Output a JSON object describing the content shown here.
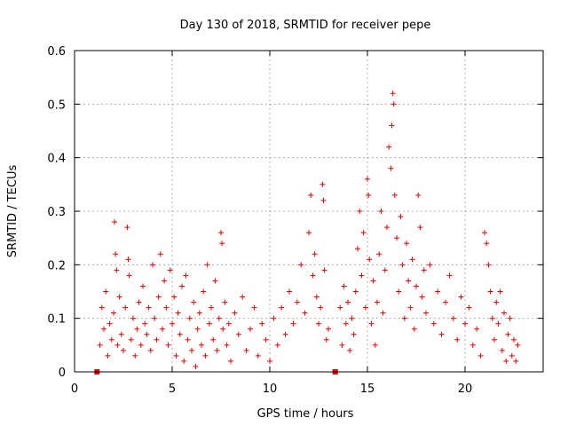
{
  "chart_data": {
    "type": "scatter",
    "title": "Day 130 of 2018, SRMTID for receiver pepe",
    "xlabel": "GPS time / hours",
    "ylabel": "SRMTID / TECUs",
    "xlim": [
      0,
      24
    ],
    "ylim": [
      0,
      0.6
    ],
    "xticks": [
      0,
      5,
      10,
      15,
      20
    ],
    "yticks": [
      0,
      0.1,
      0.2,
      0.3,
      0.4,
      0.5,
      0.6
    ],
    "grid": true,
    "marker": "+",
    "color": "#e00000",
    "outlier_squares": [
      {
        "x": 1.15,
        "y": 0.0
      },
      {
        "x": 13.35,
        "y": 0.0
      }
    ],
    "series": [
      {
        "name": "SRMTID",
        "points": [
          [
            1.3,
            0.05
          ],
          [
            1.4,
            0.12
          ],
          [
            1.5,
            0.08
          ],
          [
            1.6,
            0.15
          ],
          [
            1.7,
            0.03
          ],
          [
            1.8,
            0.09
          ],
          [
            1.9,
            0.06
          ],
          [
            2.0,
            0.11
          ],
          [
            2.05,
            0.28
          ],
          [
            2.1,
            0.22
          ],
          [
            2.15,
            0.19
          ],
          [
            2.2,
            0.05
          ],
          [
            2.3,
            0.14
          ],
          [
            2.4,
            0.07
          ],
          [
            2.5,
            0.04
          ],
          [
            2.6,
            0.12
          ],
          [
            2.7,
            0.27
          ],
          [
            2.75,
            0.21
          ],
          [
            2.8,
            0.18
          ],
          [
            2.9,
            0.06
          ],
          [
            3.0,
            0.1
          ],
          [
            3.1,
            0.03
          ],
          [
            3.2,
            0.08
          ],
          [
            3.3,
            0.13
          ],
          [
            3.4,
            0.05
          ],
          [
            3.5,
            0.16
          ],
          [
            3.6,
            0.09
          ],
          [
            3.7,
            0.07
          ],
          [
            3.8,
            0.12
          ],
          [
            3.9,
            0.04
          ],
          [
            4.0,
            0.2
          ],
          [
            4.1,
            0.1
          ],
          [
            4.2,
            0.06
          ],
          [
            4.3,
            0.14
          ],
          [
            4.4,
            0.22
          ],
          [
            4.5,
            0.08
          ],
          [
            4.6,
            0.17
          ],
          [
            4.7,
            0.12
          ],
          [
            4.8,
            0.05
          ],
          [
            4.9,
            0.19
          ],
          [
            5.0,
            0.09
          ],
          [
            5.1,
            0.14
          ],
          [
            5.2,
            0.03
          ],
          [
            5.3,
            0.11
          ],
          [
            5.4,
            0.07
          ],
          [
            5.5,
            0.16
          ],
          [
            5.6,
            0.02
          ],
          [
            5.7,
            0.18
          ],
          [
            5.8,
            0.06
          ],
          [
            5.9,
            0.1
          ],
          [
            6.0,
            0.04
          ],
          [
            6.1,
            0.13
          ],
          [
            6.2,
            0.01
          ],
          [
            6.3,
            0.08
          ],
          [
            6.4,
            0.11
          ],
          [
            6.5,
            0.05
          ],
          [
            6.6,
            0.15
          ],
          [
            6.7,
            0.03
          ],
          [
            6.8,
            0.2
          ],
          [
            6.9,
            0.09
          ],
          [
            7.0,
            0.12
          ],
          [
            7.1,
            0.06
          ],
          [
            7.2,
            0.17
          ],
          [
            7.3,
            0.04
          ],
          [
            7.4,
            0.1
          ],
          [
            7.5,
            0.26
          ],
          [
            7.55,
            0.24
          ],
          [
            7.6,
            0.08
          ],
          [
            7.7,
            0.13
          ],
          [
            7.8,
            0.05
          ],
          [
            7.9,
            0.09
          ],
          [
            8.0,
            0.02
          ],
          [
            8.2,
            0.11
          ],
          [
            8.4,
            0.07
          ],
          [
            8.6,
            0.14
          ],
          [
            8.8,
            0.04
          ],
          [
            9.0,
            0.08
          ],
          [
            9.2,
            0.12
          ],
          [
            9.4,
            0.03
          ],
          [
            9.6,
            0.09
          ],
          [
            9.8,
            0.06
          ],
          [
            10.0,
            0.02
          ],
          [
            10.2,
            0.1
          ],
          [
            10.4,
            0.05
          ],
          [
            10.6,
            0.12
          ],
          [
            10.8,
            0.07
          ],
          [
            11.0,
            0.15
          ],
          [
            11.2,
            0.09
          ],
          [
            11.4,
            0.13
          ],
          [
            11.6,
            0.2
          ],
          [
            11.8,
            0.11
          ],
          [
            12.0,
            0.26
          ],
          [
            12.1,
            0.33
          ],
          [
            12.2,
            0.18
          ],
          [
            12.3,
            0.22
          ],
          [
            12.4,
            0.14
          ],
          [
            12.5,
            0.09
          ],
          [
            12.6,
            0.12
          ],
          [
            12.7,
            0.35
          ],
          [
            12.75,
            0.32
          ],
          [
            12.8,
            0.19
          ],
          [
            12.9,
            0.06
          ],
          [
            13.0,
            0.08
          ],
          [
            13.6,
            0.12
          ],
          [
            13.7,
            0.05
          ],
          [
            13.8,
            0.16
          ],
          [
            13.9,
            0.09
          ],
          [
            14.0,
            0.13
          ],
          [
            14.1,
            0.04
          ],
          [
            14.2,
            0.1
          ],
          [
            14.3,
            0.07
          ],
          [
            14.4,
            0.15
          ],
          [
            14.5,
            0.23
          ],
          [
            14.6,
            0.3
          ],
          [
            14.7,
            0.18
          ],
          [
            14.8,
            0.26
          ],
          [
            14.9,
            0.12
          ],
          [
            15.0,
            0.36
          ],
          [
            15.05,
            0.33
          ],
          [
            15.1,
            0.21
          ],
          [
            15.2,
            0.09
          ],
          [
            15.3,
            0.17
          ],
          [
            15.4,
            0.05
          ],
          [
            15.5,
            0.13
          ],
          [
            15.6,
            0.22
          ],
          [
            15.7,
            0.3
          ],
          [
            15.8,
            0.11
          ],
          [
            15.9,
            0.19
          ],
          [
            16.0,
            0.27
          ],
          [
            16.1,
            0.42
          ],
          [
            16.2,
            0.38
          ],
          [
            16.25,
            0.46
          ],
          [
            16.3,
            0.52
          ],
          [
            16.35,
            0.5
          ],
          [
            16.4,
            0.33
          ],
          [
            16.5,
            0.25
          ],
          [
            16.6,
            0.15
          ],
          [
            16.7,
            0.29
          ],
          [
            16.8,
            0.2
          ],
          [
            16.9,
            0.1
          ],
          [
            17.0,
            0.24
          ],
          [
            17.1,
            0.17
          ],
          [
            17.2,
            0.12
          ],
          [
            17.3,
            0.21
          ],
          [
            17.4,
            0.08
          ],
          [
            17.5,
            0.16
          ],
          [
            17.6,
            0.33
          ],
          [
            17.7,
            0.27
          ],
          [
            17.8,
            0.14
          ],
          [
            17.9,
            0.19
          ],
          [
            18.0,
            0.11
          ],
          [
            18.2,
            0.2
          ],
          [
            18.4,
            0.09
          ],
          [
            18.6,
            0.15
          ],
          [
            18.8,
            0.07
          ],
          [
            19.0,
            0.13
          ],
          [
            19.2,
            0.18
          ],
          [
            19.4,
            0.1
          ],
          [
            19.6,
            0.06
          ],
          [
            19.8,
            0.14
          ],
          [
            20.0,
            0.09
          ],
          [
            20.2,
            0.12
          ],
          [
            20.4,
            0.05
          ],
          [
            20.6,
            0.08
          ],
          [
            20.8,
            0.03
          ],
          [
            21.0,
            0.26
          ],
          [
            21.1,
            0.24
          ],
          [
            21.2,
            0.2
          ],
          [
            21.3,
            0.15
          ],
          [
            21.4,
            0.1
          ],
          [
            21.5,
            0.06
          ],
          [
            21.6,
            0.13
          ],
          [
            21.7,
            0.09
          ],
          [
            21.8,
            0.15
          ],
          [
            21.9,
            0.04
          ],
          [
            22.0,
            0.11
          ],
          [
            22.1,
            0.02
          ],
          [
            22.2,
            0.07
          ],
          [
            22.3,
            0.1
          ],
          [
            22.4,
            0.03
          ],
          [
            22.5,
            0.06
          ],
          [
            22.6,
            0.02
          ],
          [
            22.7,
            0.05
          ]
        ]
      }
    ]
  }
}
